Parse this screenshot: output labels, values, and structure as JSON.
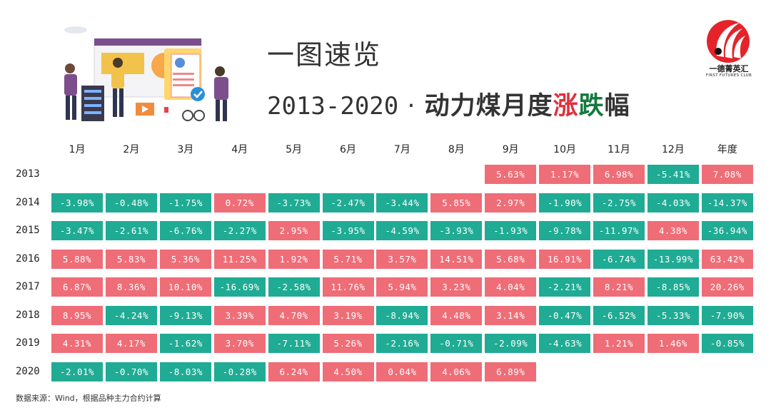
{
  "header": {
    "title": "一图速览",
    "subtitle_years": "2013-2020",
    "subtitle_dot": " · ",
    "subtitle_a": "动力煤月度",
    "subtitle_up": "涨",
    "subtitle_down": "跌",
    "subtitle_end": "幅"
  },
  "logo": {
    "name": "一德菁英汇",
    "sub": "FIRST FUTURES CLUB"
  },
  "colors": {
    "positive": "#ef6d77",
    "negative": "#20ab94",
    "up_text": "#e0303c",
    "down_text": "#127a3c"
  },
  "chart_data": {
    "type": "table",
    "columns": [
      "1月",
      "2月",
      "3月",
      "4月",
      "5月",
      "6月",
      "7月",
      "8月",
      "9月",
      "10月",
      "11月",
      "12月",
      "年度"
    ],
    "rows": [
      {
        "year": "2013",
        "values": [
          null,
          null,
          null,
          null,
          null,
          null,
          null,
          null,
          "5.63%",
          "1.17%",
          "6.98%",
          "-5.41%",
          "7.08%"
        ]
      },
      {
        "year": "2014",
        "values": [
          "-3.98%",
          "-0.48%",
          "-1.75%",
          "0.72%",
          "-3.73%",
          "-2.47%",
          "-3.44%",
          "5.85%",
          "2.97%",
          "-1.90%",
          "-2.75%",
          "-4.03%",
          "-14.37%"
        ]
      },
      {
        "year": "2015",
        "values": [
          "-3.47%",
          "-2.61%",
          "-6.76%",
          "-2.27%",
          "2.95%",
          "-3.95%",
          "-4.59%",
          "-3.93%",
          "-1.93%",
          "-9.78%",
          "-11.97%",
          "4.38%",
          "-36.94%"
        ]
      },
      {
        "year": "2016",
        "values": [
          "5.88%",
          "5.83%",
          "5.36%",
          "11.25%",
          "1.92%",
          "5.71%",
          "3.57%",
          "14.51%",
          "5.68%",
          "16.91%",
          "-6.74%",
          "-13.99%",
          "63.42%"
        ]
      },
      {
        "year": "2017",
        "values": [
          "6.87%",
          "8.36%",
          "10.10%",
          "-16.69%",
          "-2.58%",
          "11.76%",
          "5.94%",
          "3.23%",
          "4.04%",
          "-2.21%",
          "8.21%",
          "-8.85%",
          "20.26%"
        ]
      },
      {
        "year": "2018",
        "values": [
          "8.95%",
          "-4.24%",
          "-9.13%",
          "3.39%",
          "4.70%",
          "3.19%",
          "-8.94%",
          "4.48%",
          "3.14%",
          "-0.47%",
          "-6.52%",
          "-5.33%",
          "-7.90%"
        ]
      },
      {
        "year": "2019",
        "values": [
          "4.31%",
          "4.17%",
          "-1.62%",
          "3.70%",
          "-7.11%",
          "5.26%",
          "-2.16%",
          "-0.71%",
          "-2.09%",
          "-4.63%",
          "1.21%",
          "1.46%",
          "-0.85%"
        ]
      },
      {
        "year": "2020",
        "values": [
          "-2.01%",
          "-0.70%",
          "-8.03%",
          "-0.28%",
          "6.24%",
          "4.50%",
          "0.04%",
          "4.06%",
          "6.89%",
          null,
          null,
          null,
          null
        ]
      }
    ]
  },
  "source": "数据来源：Wind，根据品种主力合约计算"
}
